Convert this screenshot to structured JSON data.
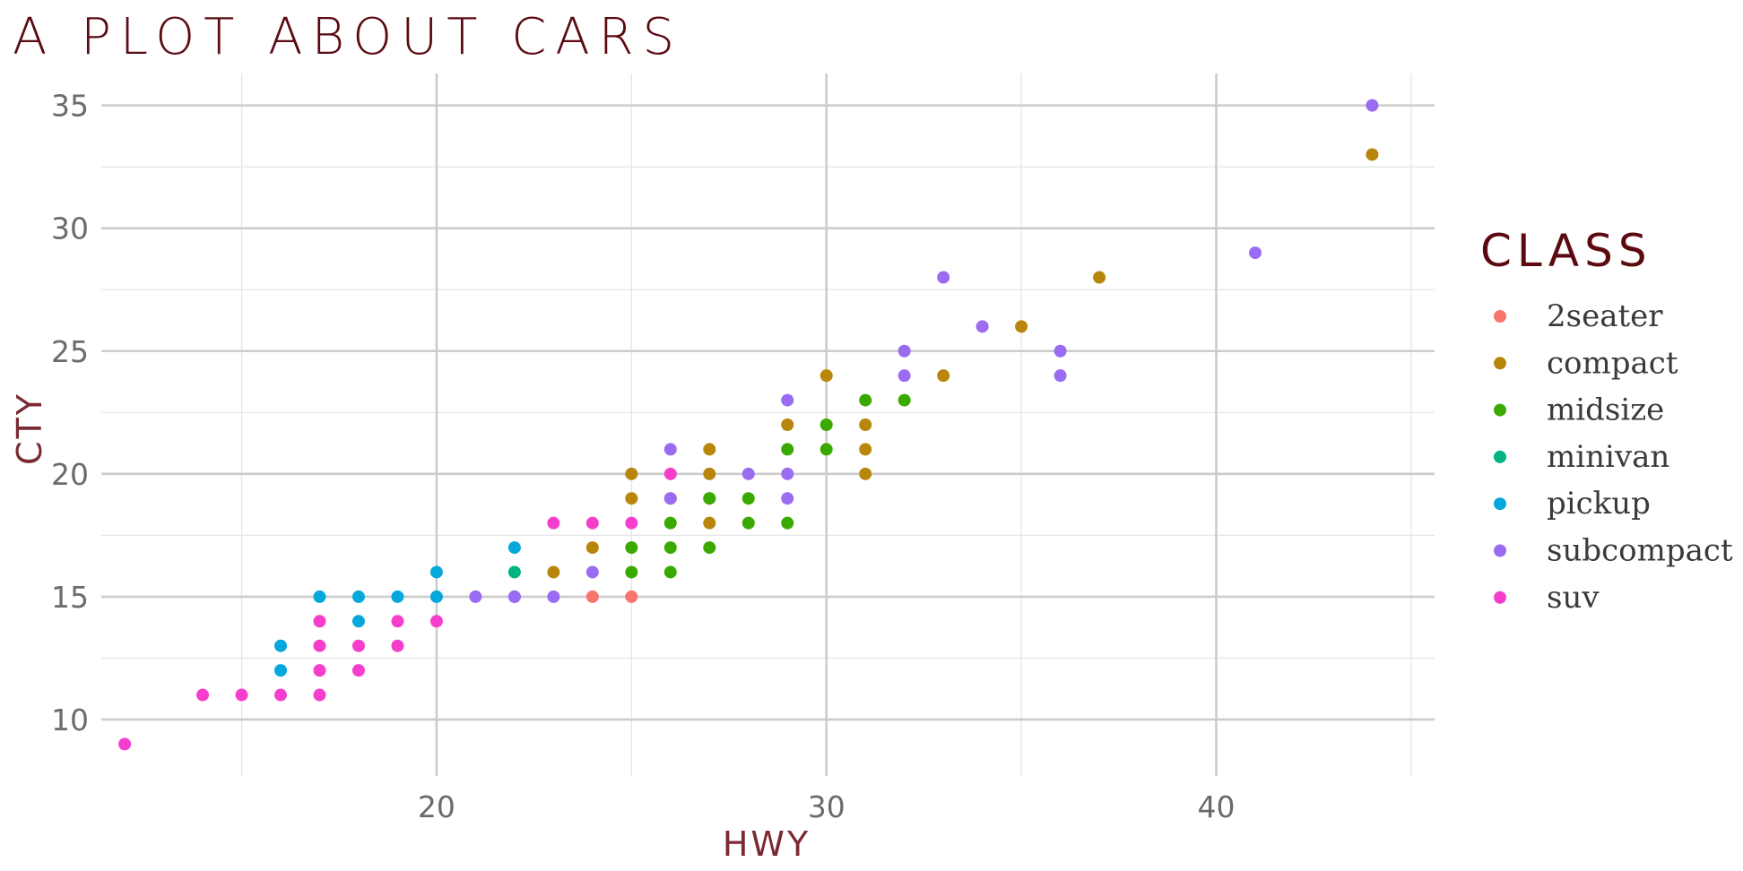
{
  "chart_data": {
    "type": "scatter",
    "title": "A PLOT ABOUT CARS",
    "xlabel": "HWY",
    "ylabel": "CTY",
    "xlim": [
      11.4,
      45.6
    ],
    "ylim": [
      7.7,
      36.3
    ],
    "x_ticks": [
      20,
      30,
      40
    ],
    "y_ticks": [
      10,
      15,
      20,
      25,
      30,
      35
    ],
    "x_tick_labels": [
      "20",
      "30",
      "40"
    ],
    "y_tick_labels": [
      "10",
      "15",
      "20",
      "25",
      "30",
      "35"
    ],
    "grid": true,
    "legend_title": "CLASS",
    "legend_position": "right",
    "series": [
      {
        "name": "2seater",
        "color": "#F8766D",
        "points": [
          [
            24,
            15
          ],
          [
            25,
            15
          ]
        ]
      },
      {
        "name": "compact",
        "color": "#B8860B",
        "points": [
          [
            44,
            33
          ],
          [
            37,
            28
          ],
          [
            35,
            26
          ],
          [
            33,
            24
          ],
          [
            30,
            24
          ],
          [
            29,
            22
          ],
          [
            31,
            22
          ],
          [
            27,
            21
          ],
          [
            31,
            21
          ],
          [
            25,
            20
          ],
          [
            27,
            20
          ],
          [
            31,
            20
          ],
          [
            25,
            19
          ],
          [
            27,
            19
          ],
          [
            24,
            17
          ],
          [
            27,
            18
          ],
          [
            23,
            16
          ],
          [
            26,
            19
          ]
        ]
      },
      {
        "name": "midsize",
        "color": "#3BAA00",
        "points": [
          [
            31,
            23
          ],
          [
            32,
            23
          ],
          [
            30,
            22
          ],
          [
            29,
            21
          ],
          [
            30,
            21
          ],
          [
            27,
            19
          ],
          [
            28,
            19
          ],
          [
            26,
            18
          ],
          [
            28,
            18
          ],
          [
            29,
            18
          ],
          [
            25,
            17
          ],
          [
            26,
            17
          ],
          [
            27,
            17
          ],
          [
            25,
            16
          ],
          [
            26,
            16
          ]
        ]
      },
      {
        "name": "minivan",
        "color": "#00B383",
        "points": [
          [
            22,
            16
          ],
          [
            22,
            15
          ]
        ]
      },
      {
        "name": "pickup",
        "color": "#05A8DD",
        "points": [
          [
            22,
            17
          ],
          [
            20,
            16
          ],
          [
            17,
            15
          ],
          [
            18,
            15
          ],
          [
            19,
            15
          ],
          [
            20,
            15
          ],
          [
            18,
            14
          ],
          [
            16,
            13
          ],
          [
            16,
            12
          ]
        ]
      },
      {
        "name": "subcompact",
        "color": "#9B6CF2",
        "points": [
          [
            44,
            35
          ],
          [
            41,
            29
          ],
          [
            33,
            28
          ],
          [
            34,
            26
          ],
          [
            32,
            25
          ],
          [
            36,
            25
          ],
          [
            32,
            24
          ],
          [
            36,
            24
          ],
          [
            29,
            23
          ],
          [
            26,
            21
          ],
          [
            28,
            20
          ],
          [
            29,
            20
          ],
          [
            26,
            19
          ],
          [
            29,
            19
          ],
          [
            24,
            16
          ],
          [
            21,
            15
          ],
          [
            22,
            15
          ],
          [
            23,
            15
          ]
        ]
      },
      {
        "name": "suv",
        "color": "#F53FCC",
        "points": [
          [
            12,
            9
          ],
          [
            14,
            11
          ],
          [
            15,
            11
          ],
          [
            16,
            11
          ],
          [
            17,
            11
          ],
          [
            17,
            12
          ],
          [
            18,
            12
          ],
          [
            17,
            13
          ],
          [
            18,
            13
          ],
          [
            19,
            13
          ],
          [
            17,
            14
          ],
          [
            19,
            14
          ],
          [
            20,
            14
          ],
          [
            23,
            18
          ],
          [
            24,
            18
          ],
          [
            25,
            18
          ],
          [
            26,
            20
          ]
        ]
      }
    ]
  }
}
